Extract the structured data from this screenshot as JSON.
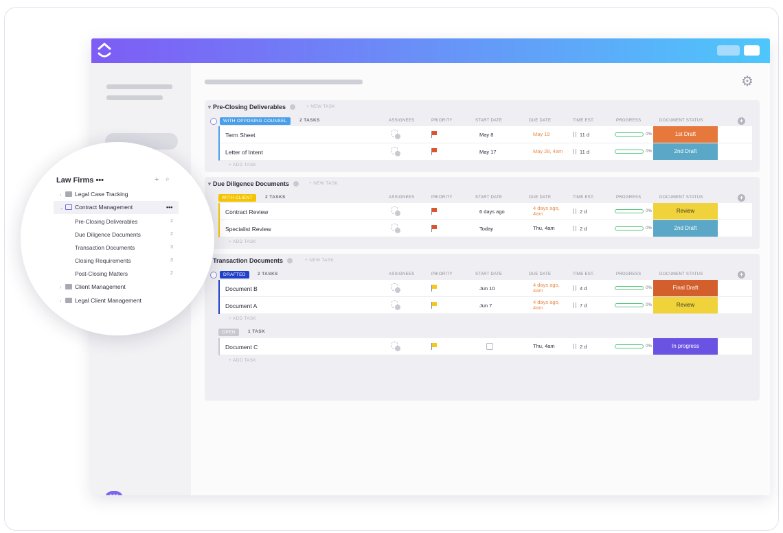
{
  "colors": {
    "topbar_start": "#7e5cf5",
    "topbar_end": "#4ec7fb",
    "accent_purple": "#7b68ee",
    "status_blue": "#4a9fe8",
    "status_yellow": "#f5c400",
    "status_navy": "#2141c8",
    "status_gray": "#c8c8d0",
    "doc_orange": "#e6783c",
    "doc_teal": "#5aa7c7",
    "doc_yellow": "#f0d33a",
    "doc_rust": "#d25f2c",
    "doc_violet": "#6a52e3",
    "flag_red": "#e0512d",
    "flag_yellow": "#f6c81d",
    "date_orange": "#e88b4a"
  },
  "sidebar_popup": {
    "workspace_title": "Law Firms •••",
    "items": [
      {
        "label": "Legal Case Tracking",
        "icon": "folder-icon"
      },
      {
        "label": "Contract Management",
        "icon": "folder-open-icon",
        "active": true,
        "more": "•••"
      },
      {
        "label": "Client Management",
        "icon": "folder-icon"
      },
      {
        "label": "Legal Client Management",
        "icon": "folder-icon"
      }
    ],
    "sub_items": [
      {
        "label": "Pre-Closing Deliverables",
        "count": "2"
      },
      {
        "label": "Due Diligence Documents",
        "count": "2"
      },
      {
        "label": "Transaction Documents",
        "count": "3"
      },
      {
        "label": "Closing Requirements",
        "count": "3"
      },
      {
        "label": "Post-Closing Matters",
        "count": "2"
      }
    ]
  },
  "columns": [
    "ASSIGNEES",
    "PRIORITY",
    "START DATE",
    "DUE DATE",
    "TIME EST.",
    "PROGRESS",
    "DOCUMENT STATUS"
  ],
  "new_task_label": "+ NEW TASK",
  "add_task_label": "+ ADD TASK",
  "groups": [
    {
      "title": "Pre-Closing Deliverables",
      "statuses": [
        {
          "label": "WITH OPPOSING COUNSEL",
          "count": "2 TASKS",
          "tasks": [
            {
              "name": "Term Sheet",
              "priority": "urgent",
              "start": "May 8",
              "due": "May 19",
              "est": "11 d",
              "progress": "0%",
              "doc_status": "1st Draft"
            },
            {
              "name": "Letter of Intent",
              "priority": "urgent",
              "start": "May 17",
              "due": "May 28, 4am",
              "est": "11 d",
              "progress": "0%",
              "doc_status": "2nd Draft"
            }
          ]
        }
      ]
    },
    {
      "title": "Due Diligence Documents",
      "statuses": [
        {
          "label": "WITH CLIENT",
          "count": "2 TASKS",
          "tasks": [
            {
              "name": "Contract Review",
              "priority": "urgent",
              "start": "6 days ago",
              "due": "4 days ago, 4am",
              "est": "2 d",
              "progress": "0%",
              "doc_status": "Review"
            },
            {
              "name": "Specialist Review",
              "priority": "urgent",
              "start": "Today",
              "due": "Thu, 4am",
              "est": "2 d",
              "progress": "0%",
              "doc_status": "2nd Draft"
            }
          ]
        }
      ]
    },
    {
      "title": "Transaction Documents",
      "statuses": [
        {
          "label": "DRAFTED",
          "count": "2 TASKS",
          "tasks": [
            {
              "name": "Document B",
              "priority": "high",
              "start": "Jun 10",
              "due": "4 days ago, 4am",
              "est": "4 d",
              "progress": "0%",
              "doc_status": "Final Draft"
            },
            {
              "name": "Document A",
              "priority": "high",
              "start": "Jun 7",
              "due": "4 days ago, 4am",
              "est": "7 d",
              "progress": "0%",
              "doc_status": "Review"
            }
          ]
        },
        {
          "label": "OPEN",
          "count": "1 TASK",
          "tasks": [
            {
              "name": "Document C",
              "priority": "high",
              "start": "",
              "due": "Thu, 4am",
              "est": "2 d",
              "progress": "0%",
              "doc_status": "In progress"
            }
          ]
        }
      ]
    }
  ]
}
